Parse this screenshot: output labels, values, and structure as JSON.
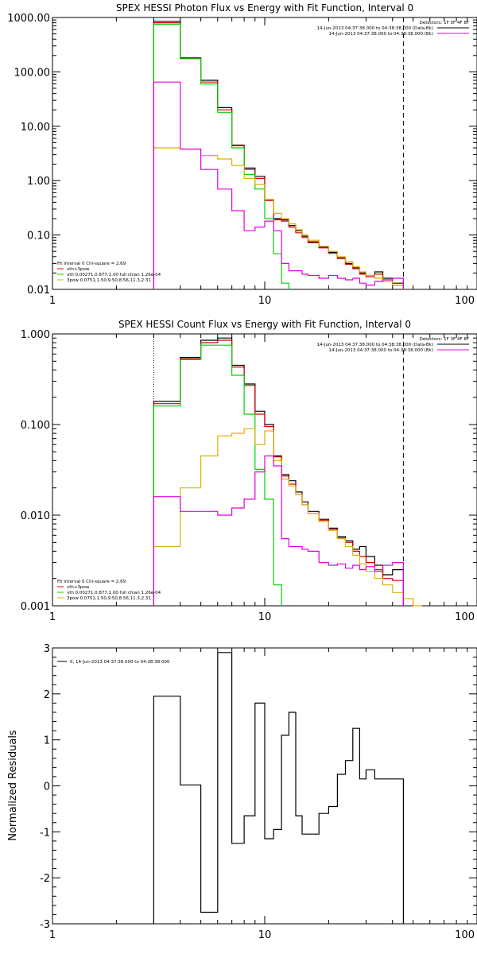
{
  "chart_data": [
    {
      "type": "line",
      "title": "SPEX HESSI Photon Flux vs Energy with Fit Function, Interval 0",
      "xscale": "log",
      "yscale": "log",
      "xlim": [
        1,
        100
      ],
      "ylim": [
        0.01,
        1000
      ],
      "x_tick_labels": [
        "1",
        "10",
        "100"
      ],
      "y_tick_labels": [
        "0.01",
        "0.10",
        "1.00",
        "10.00",
        "100.00",
        "1000.00"
      ],
      "y_tick_values": [
        0.01,
        0.1,
        1,
        10,
        100,
        1000
      ],
      "vlines": [
        {
          "x": 3,
          "style": "dotted"
        },
        {
          "x": 45,
          "style": "dashed"
        }
      ],
      "legend_top": {
        "placement": "top-right",
        "header": "Detectors: 1F 3F 4F 8F",
        "entries": [
          {
            "label": "14-Jun-2013 04:37:38.000 to 04:38:38.000 (Data-Bk)",
            "color": "#000000"
          },
          {
            "label": "14-Jun-2013 04:37:38.000 to 04:38:38.000 (Bk)",
            "color": "#e000e0"
          }
        ]
      },
      "legend_bottom": {
        "placement": "bottom-left",
        "header": "Fit Interval 0   Chi-square = 2.69",
        "entries": [
          {
            "label": "vth+3pow",
            "color": "#d00000"
          },
          {
            "label": "vth 0.00271,0.877,1.00  full chian 1.26e-04",
            "color": "#00d000"
          },
          {
            "label": "3pow 0.0751,1.50,9.50,8.56,11.3,2.31",
            "color": "#e0b000"
          }
        ]
      },
      "bin_edges": [
        3.0,
        4.0,
        5.0,
        6.0,
        7.0,
        8.0,
        9.0,
        10.0,
        11.0,
        12.0,
        13.0,
        14.0,
        15.0,
        16.0,
        18.0,
        20.0,
        22.0,
        24.0,
        26.0,
        28.0,
        30.0,
        33.0,
        36.0,
        40.0,
        45.0
      ],
      "series": [
        {
          "color": "#000000",
          "values": [
            850,
            180,
            70,
            22,
            4.5,
            1.7,
            1.2,
            0.45,
            0.2,
            0.19,
            0.15,
            0.12,
            0.095,
            0.075,
            0.06,
            0.048,
            0.038,
            0.03,
            0.025,
            0.02,
            0.018,
            0.021,
            0.016,
            0.013
          ]
        },
        {
          "color": "#d00000",
          "values": [
            800,
            175,
            65,
            20,
            4.4,
            1.6,
            1.1,
            0.43,
            0.19,
            0.18,
            0.14,
            0.11,
            0.09,
            0.072,
            0.058,
            0.046,
            0.037,
            0.029,
            0.024,
            0.019,
            0.017,
            0.019,
            0.015,
            0.012
          ]
        },
        {
          "color": "#00d000",
          "values": [
            750,
            175,
            60,
            18,
            4.0,
            1.3,
            0.7,
            0.2,
            0.045,
            0.013,
            null,
            null,
            null,
            null,
            null,
            null,
            null,
            null,
            null,
            null,
            null,
            null,
            null,
            null
          ]
        },
        {
          "color": "#e0b000",
          "values": [
            4.0,
            3.8,
            2.9,
            2.5,
            1.9,
            1.1,
            0.85,
            0.45,
            0.25,
            0.2,
            0.16,
            0.125,
            0.1,
            0.08,
            0.062,
            0.05,
            0.04,
            0.032,
            0.026,
            0.021,
            0.018,
            0.016,
            0.014,
            0.012
          ]
        },
        {
          "color": "#e000e0",
          "values": [
            65,
            3.8,
            1.6,
            0.7,
            0.28,
            0.12,
            0.14,
            0.18,
            0.12,
            0.03,
            0.022,
            0.022,
            0.019,
            0.018,
            0.016,
            0.018,
            0.016,
            0.015,
            0.016,
            0.013,
            0.012,
            0.014,
            0.015,
            0.016
          ]
        }
      ]
    },
    {
      "type": "line",
      "title": "SPEX HESSI Count Flux vs Energy with Fit Function, Interval 0",
      "xscale": "log",
      "yscale": "log",
      "xlim": [
        1,
        100
      ],
      "ylim": [
        0.001,
        1
      ],
      "x_tick_labels": [
        "1",
        "10",
        "100"
      ],
      "y_tick_labels": [
        "0.001",
        "0.010",
        "0.100",
        "1.000"
      ],
      "y_tick_values": [
        0.001,
        0.01,
        0.1,
        1
      ],
      "vlines": [
        {
          "x": 3,
          "style": "dotted"
        },
        {
          "x": 45,
          "style": "dashed"
        }
      ],
      "legend_top": {
        "placement": "top-right",
        "header": "Detectors: 1F 3F 4F 8F",
        "entries": [
          {
            "label": "14-Jun-2013 04:37:38.000 to 04:38:38.000 (Data-Bk)",
            "color": "#000000"
          },
          {
            "label": "14-Jun-2013 04:37:38.000 to 04:38:38.000 (Bk)",
            "color": "#e000e0"
          }
        ]
      },
      "legend_bottom": {
        "placement": "bottom-left",
        "header": "Fit Interval 0   Chi-square = 2.69",
        "entries": [
          {
            "label": "vth+3pow",
            "color": "#d00000"
          },
          {
            "label": "vth 0.00271,0.877,1.00  full chian 1.26e-04",
            "color": "#00d000"
          },
          {
            "label": "3pow 0.0751,1.50,9.50,8.56,11.3,2.31",
            "color": "#e0b000"
          }
        ]
      },
      "bin_edges": [
        3.0,
        4.0,
        5.0,
        6.0,
        7.0,
        8.0,
        9.0,
        10.0,
        11.0,
        12.0,
        13.0,
        14.0,
        15.0,
        16.0,
        18.0,
        20.0,
        22.0,
        24.0,
        26.0,
        28.0,
        30.0,
        33.0,
        36.0,
        40.0,
        45.0,
        50.0,
        55.0
      ],
      "series": [
        {
          "color": "#000000",
          "values": [
            0.18,
            0.55,
            0.85,
            0.9,
            0.45,
            0.28,
            0.14,
            0.1,
            0.045,
            0.028,
            0.024,
            0.018,
            0.014,
            0.011,
            0.009,
            0.0072,
            0.0058,
            0.0052,
            0.0042,
            0.0045,
            0.0035,
            0.0028,
            0.0022,
            0.0025,
            null,
            null
          ]
        },
        {
          "color": "#d00000",
          "values": [
            0.17,
            0.53,
            0.8,
            0.85,
            0.43,
            0.27,
            0.13,
            0.095,
            0.044,
            0.027,
            0.022,
            0.017,
            0.013,
            0.0105,
            0.0088,
            0.007,
            0.0056,
            0.005,
            0.004,
            0.0035,
            0.003,
            0.0025,
            0.002,
            0.0019,
            null,
            null
          ]
        },
        {
          "color": "#00d000",
          "values": [
            0.16,
            0.52,
            0.75,
            0.75,
            0.35,
            0.13,
            0.032,
            0.015,
            0.0017,
            null,
            null,
            null,
            null,
            null,
            null,
            null,
            null,
            null,
            null,
            null,
            null,
            null,
            null,
            null,
            null,
            null
          ]
        },
        {
          "color": "#e0b000",
          "values": [
            0.0045,
            0.02,
            0.045,
            0.075,
            0.08,
            0.09,
            0.06,
            0.085,
            0.04,
            0.025,
            0.021,
            0.017,
            0.013,
            0.0105,
            0.0085,
            0.0068,
            0.0055,
            0.0045,
            0.0036,
            0.0029,
            0.0024,
            0.002,
            0.0017,
            0.0014,
            0.0012,
            0.001
          ]
        },
        {
          "color": "#e000e0",
          "values": [
            0.016,
            0.011,
            0.011,
            0.01,
            0.012,
            0.015,
            0.03,
            0.045,
            0.035,
            0.0055,
            0.0045,
            0.0045,
            0.0042,
            0.004,
            0.003,
            0.0028,
            0.0029,
            0.0026,
            0.0028,
            0.0025,
            0.0027,
            0.0024,
            0.0028,
            0.003,
            null,
            null
          ]
        }
      ]
    },
    {
      "type": "line",
      "title": "",
      "ylabel": "Normalized Residuals",
      "xscale": "log",
      "xlim": [
        1,
        100
      ],
      "ylim": [
        -3,
        3
      ],
      "x_tick_labels": [
        "1",
        "10",
        "100"
      ],
      "y_tick_labels": [
        "-3",
        "-2",
        "-1",
        "0",
        "1",
        "2",
        "3"
      ],
      "y_tick_values": [
        -3,
        -2,
        -1,
        0,
        1,
        2,
        3
      ],
      "legend": {
        "placement": "top-left",
        "entries": [
          {
            "label": "0, 14-Jun-2013 04:37:38.000 to 04:38:38.000",
            "color": "#000000"
          }
        ]
      },
      "bin_edges": [
        3.0,
        4.0,
        5.0,
        6.0,
        7.0,
        8.0,
        9.0,
        10.0,
        11.0,
        12.0,
        13.0,
        14.0,
        15.0,
        16.0,
        18.0,
        20.0,
        22.0,
        24.0,
        26.0,
        28.0,
        30.0,
        33.0,
        36.0,
        40.0,
        45.0
      ],
      "series": [
        {
          "color": "#000000",
          "values": [
            1.95,
            0.02,
            -2.75,
            2.9,
            -1.25,
            -0.65,
            1.8,
            -1.15,
            -0.95,
            1.1,
            1.6,
            -0.65,
            -1.05,
            -1.05,
            -0.6,
            -0.45,
            0.25,
            0.55,
            1.25,
            0.15,
            0.35,
            0.15,
            0.15,
            0.15
          ]
        }
      ]
    }
  ]
}
